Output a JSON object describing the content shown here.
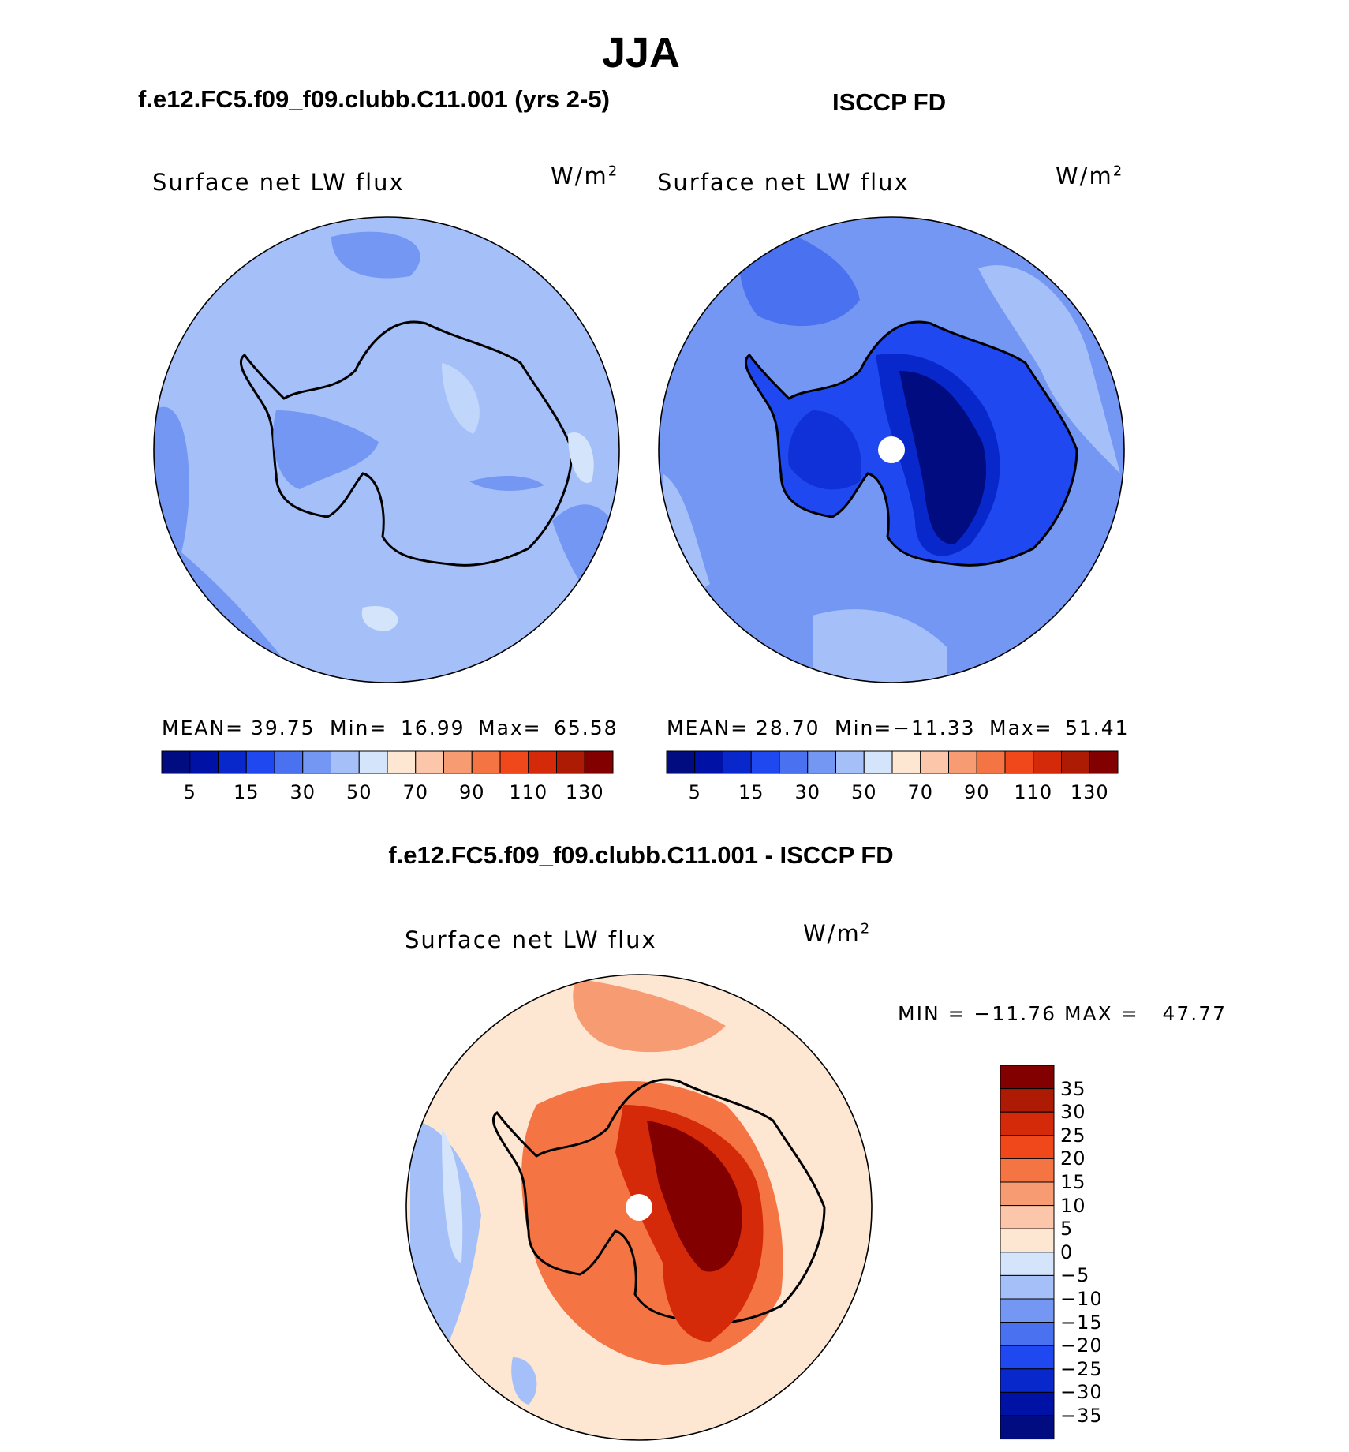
{
  "header": {
    "title": "JJA",
    "case_title": "f.e12.FC5.f09_f09.clubb.C11.001 (yrs 2-5)",
    "obs_title": "ISCCP FD",
    "diff_title": "f.e12.FC5.f09_f09.clubb.C11.001 - ISCCP FD"
  },
  "panels": {
    "case": {
      "field": "Surface net LW flux",
      "units": "W/m",
      "units_exp": "2",
      "mean_label": "MEAN=",
      "mean": "39.75",
      "min_label": "Min=",
      "min": "16.99",
      "max_label": "Max=",
      "max": "65.58"
    },
    "obs": {
      "field": "Surface net LW flux",
      "units": "W/m",
      "units_exp": "2",
      "mean_label": "MEAN=",
      "mean": "28.70",
      "min_label": "Min=",
      "min": "−11.33",
      "max_label": "Max=",
      "max": "51.41"
    },
    "diff": {
      "field": "Surface net LW flux",
      "units": "W/m",
      "units_exp": "2",
      "minmax": "MIN = −11.76 MAX =   47.77"
    }
  },
  "colorbar_abs": {
    "colors": [
      "#000c7f",
      "#0011a5",
      "#0828cc",
      "#1f48f0",
      "#4a72f0",
      "#7497f4",
      "#a5c0f9",
      "#d4e4fb",
      "#fde7d3",
      "#fbc6a9",
      "#f79b72",
      "#f47444",
      "#f0481b",
      "#d52a0a",
      "#ad1b05",
      "#820000"
    ],
    "tick_labels": [
      "5",
      "15",
      "30",
      "50",
      "70",
      "90",
      "110",
      "130"
    ]
  },
  "colorbar_diff": {
    "colors": [
      "#820000",
      "#ad1b05",
      "#d52a0a",
      "#f0481b",
      "#f47444",
      "#f79b72",
      "#fbc6a9",
      "#fde7d3",
      "#d4e4fb",
      "#a5c0f9",
      "#7497f4",
      "#4a72f0",
      "#1f48f0",
      "#0828cc",
      "#0011a5",
      "#000c7f"
    ],
    "tick_labels": [
      "35",
      "30",
      "25",
      "20",
      "15",
      "10",
      "5",
      "0",
      "−5",
      "−10",
      "−15",
      "−20",
      "−25",
      "−30",
      "−35"
    ]
  }
}
